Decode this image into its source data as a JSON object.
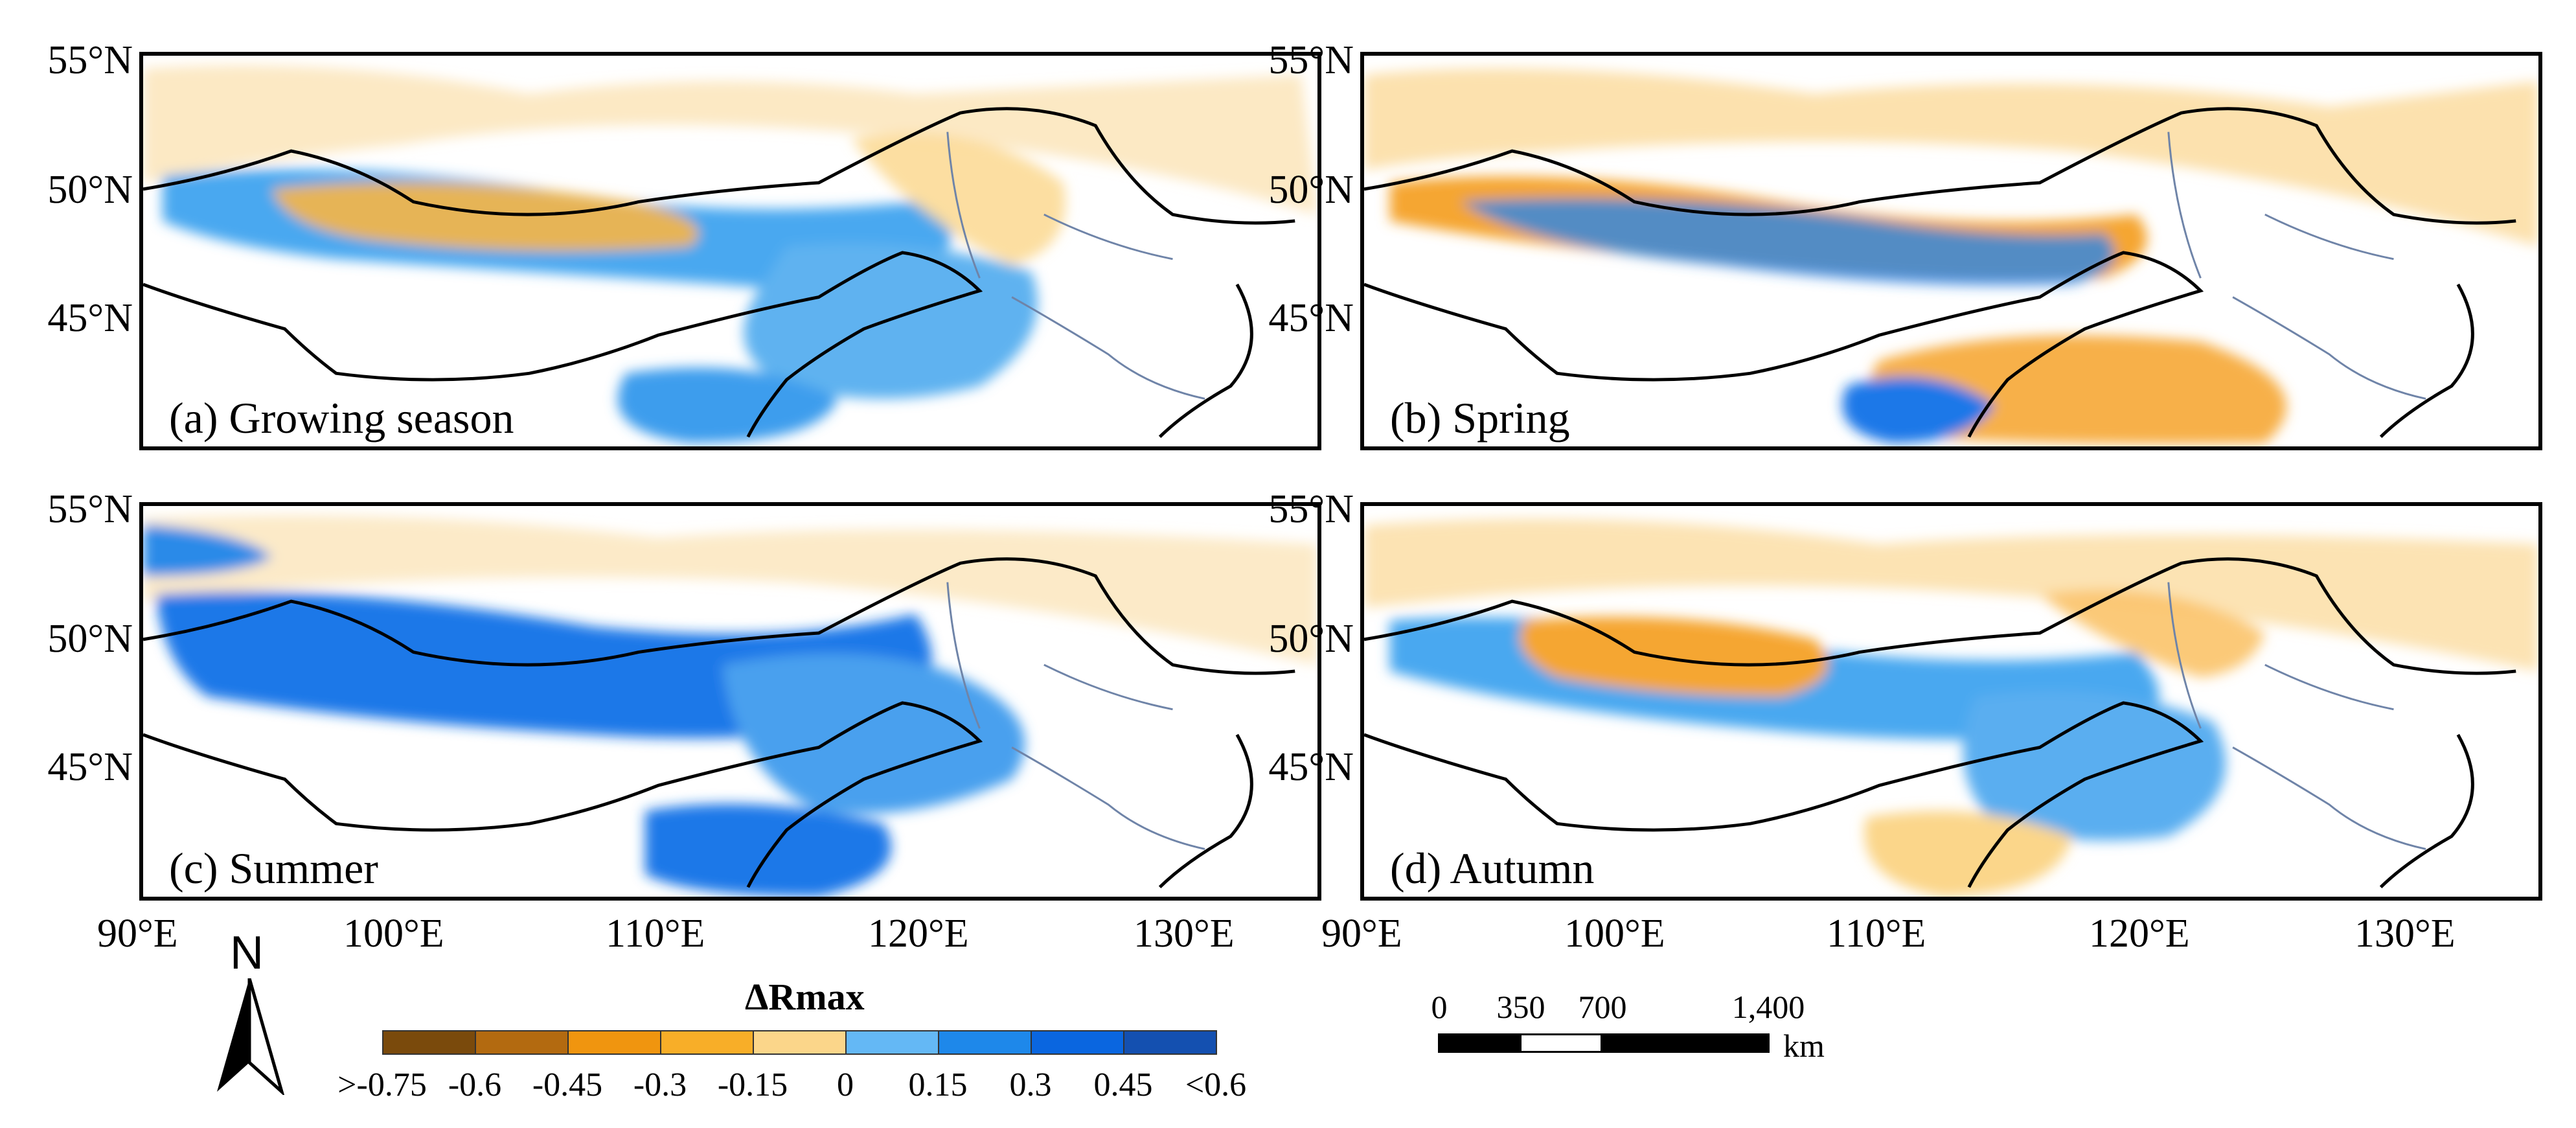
{
  "panels": [
    {
      "label": "(a) Growing season",
      "key": "growing"
    },
    {
      "label": "(b) Spring",
      "key": "spring"
    },
    {
      "label": "(c) Summer",
      "key": "summer"
    },
    {
      "label": "(d) Autumn",
      "key": "autumn"
    }
  ],
  "axes": {
    "latitude_labels": [
      "55°N",
      "50°N",
      "45°N"
    ],
    "longitude_labels": [
      "90°E",
      "100°E",
      "110°E",
      "120°E",
      "130°E"
    ]
  },
  "north_arrow": {
    "letter": "N"
  },
  "legend": {
    "title": "ΔRmax",
    "colors": [
      "#7a4a0c",
      "#b36a10",
      "#f0950f",
      "#f8ae28",
      "#fbd68a",
      "#64b8f5",
      "#1e88ea",
      "#0a66e0",
      "#1450b0"
    ],
    "tick_labels": [
      ">-0.75",
      "-0.6",
      "-0.45",
      "-0.3",
      "-0.15",
      "0",
      "0.15",
      "0.3",
      "0.45",
      "<0.6"
    ]
  },
  "scale_bar": {
    "labels": [
      "0",
      "350",
      "700",
      "1,400"
    ],
    "unit": "km"
  },
  "colors": {
    "border": "#000000",
    "province_line": "#6f84a8",
    "orange": "#f7a823",
    "light_orange": "#fbd68a",
    "blue": "#4aa8f0",
    "deep_blue": "#1e78e8"
  }
}
